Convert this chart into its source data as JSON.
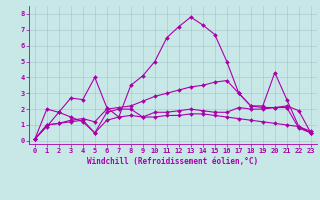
{
  "title": "",
  "xlabel": "Windchill (Refroidissement éolien,°C)",
  "ylabel": "",
  "xlim": [
    -0.5,
    23.5
  ],
  "ylim": [
    -0.2,
    8.5
  ],
  "xticks": [
    0,
    1,
    2,
    3,
    4,
    5,
    6,
    7,
    8,
    9,
    10,
    11,
    12,
    13,
    14,
    15,
    16,
    17,
    18,
    19,
    20,
    21,
    22,
    23
  ],
  "yticks": [
    0,
    1,
    2,
    3,
    4,
    5,
    6,
    7,
    8
  ],
  "bg_color": "#c8e8e8",
  "line_color": "#aa00aa",
  "grid_color": "#aacccc",
  "lines": [
    [
      0.1,
      2.0,
      1.8,
      2.7,
      2.6,
      4.0,
      2.1,
      1.5,
      3.5,
      4.1,
      5.0,
      6.5,
      7.2,
      7.8,
      7.3,
      6.7,
      5.0,
      3.0,
      2.2,
      2.2,
      4.3,
      2.6,
      0.9,
      0.6
    ],
    [
      0.1,
      0.9,
      1.8,
      1.5,
      1.2,
      0.5,
      1.8,
      2.0,
      2.0,
      1.5,
      1.8,
      1.8,
      1.9,
      2.0,
      1.9,
      1.8,
      1.8,
      2.1,
      2.0,
      2.0,
      2.1,
      2.1,
      0.8,
      0.5
    ],
    [
      0.1,
      1.0,
      1.1,
      1.2,
      1.3,
      0.5,
      1.3,
      1.5,
      1.6,
      1.5,
      1.5,
      1.6,
      1.6,
      1.7,
      1.7,
      1.6,
      1.5,
      1.4,
      1.3,
      1.2,
      1.1,
      1.0,
      0.9,
      0.5
    ],
    [
      0.1,
      1.0,
      1.1,
      1.3,
      1.4,
      1.2,
      2.0,
      2.1,
      2.2,
      2.5,
      2.8,
      3.0,
      3.2,
      3.4,
      3.5,
      3.7,
      3.8,
      3.0,
      2.2,
      2.1,
      2.1,
      2.2,
      1.9,
      0.5
    ]
  ],
  "tick_fontsize": 5.0,
  "xlabel_fontsize": 5.5,
  "marker_size": 2.0,
  "line_width": 0.8
}
